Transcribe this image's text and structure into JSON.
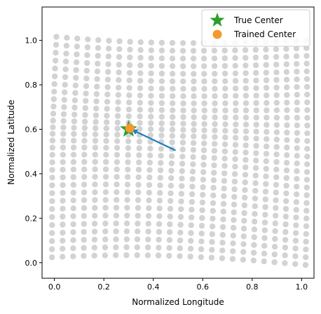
{
  "chart_data": {
    "type": "scatter",
    "title": "",
    "xlabel": "Normalized Longitude",
    "ylabel": "Normalized Latitude",
    "xlim": [
      -0.05,
      1.05
    ],
    "ylim": [
      -0.07,
      1.15
    ],
    "xticks": [
      "0.0",
      "0.2",
      "0.4",
      "0.6",
      "0.8",
      "1.0"
    ],
    "yticks": [
      "0.0",
      "0.2",
      "0.4",
      "0.6",
      "0.8",
      "1.0"
    ],
    "grid": false,
    "legend_position": "top-right",
    "series": [
      {
        "name": "",
        "kind": "warped-grid",
        "color": "#d3d3d3",
        "rows": 30,
        "cols": 25,
        "true_center": [
          0.3,
          0.6
        ],
        "corners": {
          "top_left": [
            0.02,
            1.05
          ],
          "top_right": [
            1.0,
            1.0
          ],
          "bottom_left": [
            0.0,
            -0.01
          ],
          "bottom_right": [
            1.0,
            -0.01
          ]
        }
      },
      {
        "name": "True Center",
        "marker": "star",
        "color": "#2ca02c",
        "points": [
          [
            0.3,
            0.6
          ]
        ]
      },
      {
        "name": "Trained Center",
        "marker": "circle",
        "color": "#f39a2e",
        "points": [
          [
            0.305,
            0.605
          ]
        ]
      }
    ],
    "annotations": [
      {
        "type": "arrow",
        "from": [
          0.49,
          0.505
        ],
        "to": [
          0.31,
          0.6
        ],
        "color": "#1f7fbf"
      }
    ]
  }
}
